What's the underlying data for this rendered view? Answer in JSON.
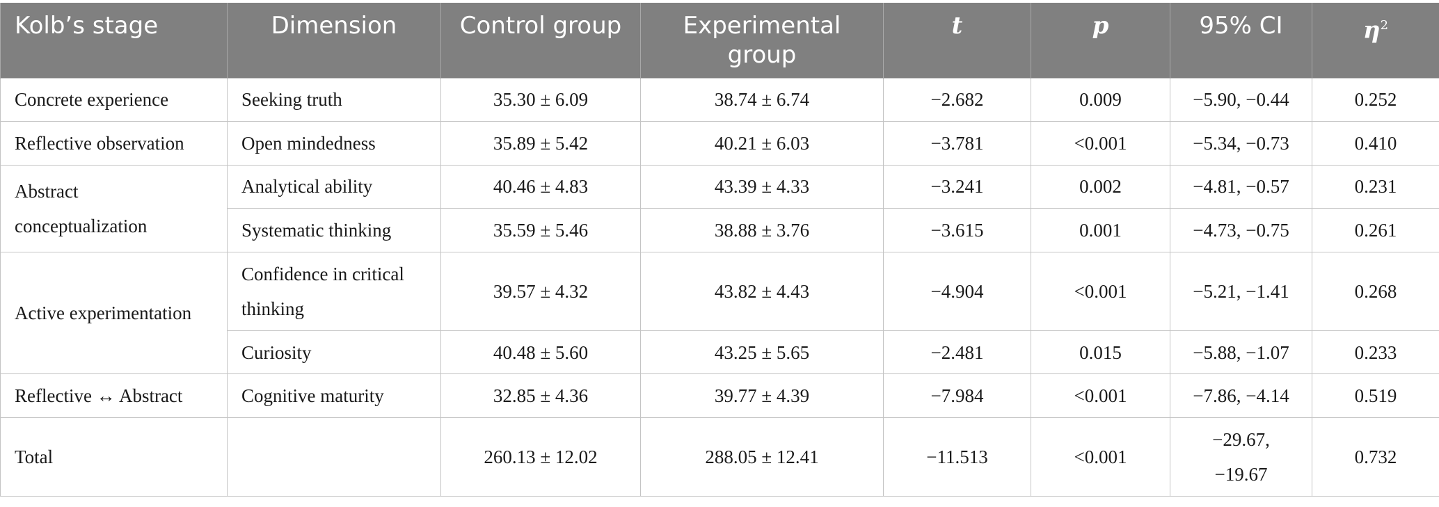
{
  "table": {
    "headers": {
      "stage": "Kolb’s stage",
      "dimension": "Dimension",
      "control": "Control group",
      "experimental": "Experimental group",
      "t": "t",
      "p": "p",
      "ci": "95% CI",
      "eta": "η",
      "eta_sup": "2"
    },
    "stages": {
      "concrete": "Concrete experience",
      "reflective": "Reflective observation",
      "abstract": "Abstract conceptualization",
      "active": "Active experimentation",
      "reflective_abstract": "Reflective ↔ Abstract",
      "total": "Total"
    },
    "rows": [
      {
        "dimension": "Seeking truth",
        "control": "35.30 ± 6.09",
        "experimental": "38.74 ± 6.74",
        "t": "−2.682",
        "p": "0.009",
        "ci": "−5.90, −0.44",
        "eta": "0.252"
      },
      {
        "dimension": "Open mindedness",
        "control": "35.89 ± 5.42",
        "experimental": "40.21 ± 6.03",
        "t": "−3.781",
        "p": "<0.001",
        "ci": "−5.34, −0.73",
        "eta": "0.410"
      },
      {
        "dimension": "Analytical ability",
        "control": "40.46 ± 4.83",
        "experimental": "43.39 ± 4.33",
        "t": "−3.241",
        "p": "0.002",
        "ci": "−4.81, −0.57",
        "eta": "0.231"
      },
      {
        "dimension": "Systematic thinking",
        "control": "35.59 ± 5.46",
        "experimental": "38.88 ± 3.76",
        "t": "−3.615",
        "p": "0.001",
        "ci": "−4.73, −0.75",
        "eta": "0.261"
      },
      {
        "dimension": "Confidence in critical thinking",
        "control": "39.57 ± 4.32",
        "experimental": "43.82 ± 4.43",
        "t": "−4.904",
        "p": "<0.001",
        "ci": "−5.21, −1.41",
        "eta": "0.268"
      },
      {
        "dimension": "Curiosity",
        "control": "40.48 ± 5.60",
        "experimental": "43.25 ± 5.65",
        "t": "−2.481",
        "p": "0.015",
        "ci": "−5.88, −1.07",
        "eta": "0.233"
      },
      {
        "dimension": "Cognitive maturity",
        "control": "32.85 ± 4.36",
        "experimental": "39.77 ± 4.39",
        "t": "−7.984",
        "p": "<0.001",
        "ci": "−7.86, −4.14",
        "eta": "0.519"
      },
      {
        "dimension": "",
        "control": "260.13 ± 12.02",
        "experimental": "288.05 ± 12.41",
        "t": "−11.513",
        "p": "<0.001",
        "ci": "−29.67, −19.67",
        "ci_line1": "−29.67,",
        "ci_line2": "−19.67",
        "eta": "0.732"
      }
    ]
  },
  "colors": {
    "header_bg": "#808080",
    "header_text": "#ffffff",
    "grid": "#c4c4c4"
  }
}
